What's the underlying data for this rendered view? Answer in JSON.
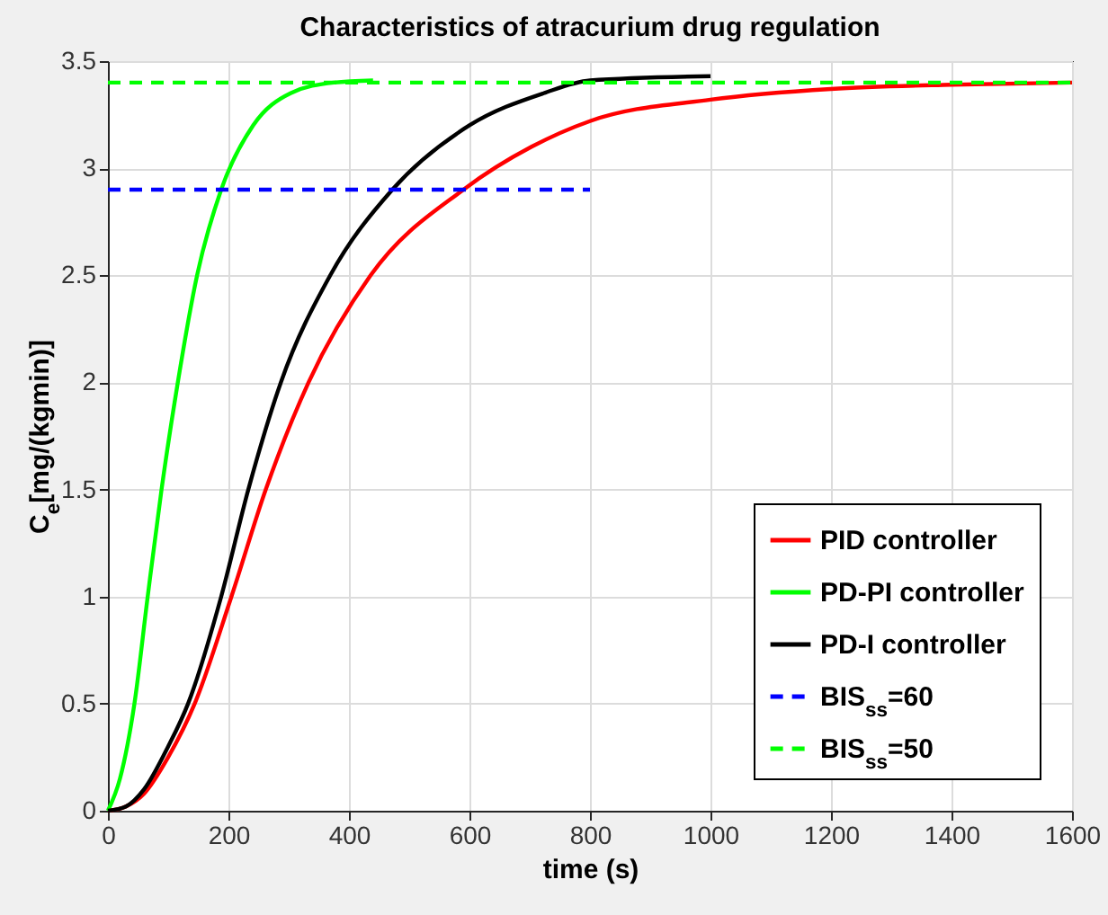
{
  "chart_data": {
    "type": "line",
    "title": "Characteristics of atracurium drug regulation",
    "xlabel": "time (s)",
    "ylabel": "C$_{e}$[mg/(kgmin)]",
    "xlim": [
      0,
      1600
    ],
    "xticks": [
      0,
      200,
      400,
      600,
      800,
      1000,
      1200,
      1400,
      1600
    ],
    "ylim": [
      0,
      3.5
    ],
    "yticks": [
      0,
      0.5,
      1,
      1.5,
      2,
      2.5,
      3,
      3.5
    ],
    "grid": true,
    "legend": "bottom right",
    "marker": "none",
    "series": [
      {
        "name": "PID controller",
        "color": "#ff0000",
        "line_style": "solid",
        "x": [
          0,
          30,
          60,
          100,
          144,
          205,
          262,
          333,
          436,
          590,
          703,
          800,
          1000,
          1200,
          1400,
          1600
        ],
        "values": [
          0,
          0.02,
          0.08,
          0.25,
          0.5,
          1,
          1.5,
          2,
          2.5,
          2.9,
          3.1,
          3.22,
          3.32,
          3.37,
          3.39,
          3.4
        ]
      },
      {
        "name": "PD-PI controller",
        "color": "#00ff00",
        "line_style": "solid",
        "x": [
          0,
          20,
          44,
          66,
          89,
          116,
          148,
          188,
          241,
          303,
          375,
          440
        ],
        "values": [
          0,
          0.15,
          0.5,
          1,
          1.5,
          2,
          2.5,
          2.9,
          3.2,
          3.35,
          3.4,
          3.41
        ]
      },
      {
        "name": "PD-I controller",
        "color": "#000000",
        "line_style": "solid",
        "x": [
          0,
          30,
          60,
          100,
          133,
          188,
          233,
          287,
          369,
          472,
          600,
          723,
          800,
          1000
        ],
        "values": [
          0,
          0.02,
          0.1,
          0.3,
          0.5,
          1,
          1.5,
          2,
          2.5,
          2.9,
          3.2,
          3.35,
          3.41,
          3.43
        ]
      },
      {
        "name": "BIS$_{ss}$=60",
        "color": "#0000ff",
        "line_style": "dashed",
        "x": [
          0,
          800
        ],
        "values": [
          2.9,
          2.9
        ]
      },
      {
        "name": "BIS$_{ss}$=50",
        "color": "#00ff00",
        "line_style": "dashed",
        "x": [
          0,
          1600
        ],
        "values": [
          3.4,
          3.4
        ]
      }
    ]
  }
}
